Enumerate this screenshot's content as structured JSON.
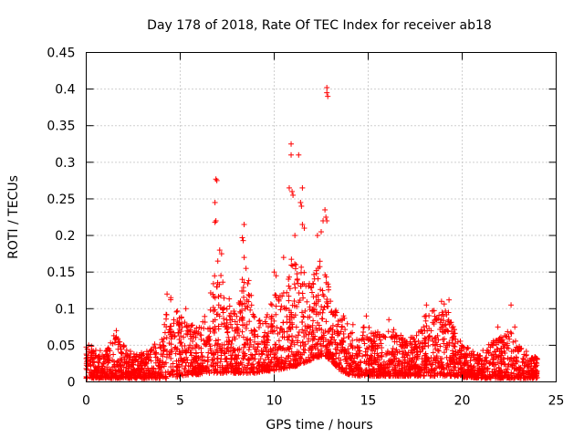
{
  "chart_data": {
    "type": "scatter",
    "title": "Day 178 of 2018, Rate Of TEC Index for receiver ab18",
    "xlabel": "GPS time / hours",
    "ylabel": "ROTI / TECUs",
    "xlim": [
      0,
      25
    ],
    "ylim": [
      0,
      0.45
    ],
    "xticks": [
      0,
      5,
      10,
      15,
      20,
      25
    ],
    "yticks": [
      0,
      0.05,
      0.1,
      0.15,
      0.2,
      0.25,
      0.3,
      0.35,
      0.4,
      0.45
    ],
    "xtick_labels": [
      "0",
      "5",
      "10",
      "15",
      "20",
      "25"
    ],
    "ytick_labels": [
      "0",
      "0.05",
      "0.1",
      "0.15",
      "0.2",
      "0.25",
      "0.3",
      "0.35",
      "0.4",
      "0.45"
    ],
    "grid": true,
    "marker": "+",
    "color": "#ff0000",
    "time_range_hours": [
      0,
      24
    ],
    "envelope": {
      "x": [
        0,
        0.5,
        1.0,
        1.5,
        2.0,
        2.5,
        3.0,
        3.5,
        4.0,
        4.5,
        5.0,
        5.5,
        6.0,
        6.5,
        7.0,
        7.5,
        8.0,
        8.5,
        9.0,
        9.5,
        10.0,
        10.5,
        11.0,
        11.5,
        12.0,
        12.5,
        13.0,
        13.5,
        14.0,
        14.5,
        15.0,
        15.5,
        16.0,
        16.5,
        17.0,
        17.5,
        18.0,
        18.5,
        19.0,
        19.5,
        20.0,
        20.5,
        21.0,
        21.5,
        22.0,
        22.5,
        23.0,
        23.5,
        24.0
      ],
      "upper": [
        0.055,
        0.045,
        0.045,
        0.065,
        0.05,
        0.04,
        0.04,
        0.045,
        0.07,
        0.115,
        0.09,
        0.08,
        0.075,
        0.11,
        0.17,
        0.12,
        0.09,
        0.17,
        0.08,
        0.09,
        0.12,
        0.13,
        0.18,
        0.16,
        0.14,
        0.17,
        0.12,
        0.1,
        0.085,
        0.07,
        0.08,
        0.07,
        0.075,
        0.07,
        0.065,
        0.06,
        0.09,
        0.1,
        0.11,
        0.085,
        0.05,
        0.045,
        0.04,
        0.055,
        0.06,
        0.075,
        0.05,
        0.04,
        0.035
      ],
      "lower": [
        0.005,
        0.005,
        0.005,
        0.005,
        0.005,
        0.005,
        0.005,
        0.005,
        0.005,
        0.005,
        0.008,
        0.01,
        0.01,
        0.012,
        0.012,
        0.012,
        0.012,
        0.012,
        0.012,
        0.015,
        0.015,
        0.018,
        0.02,
        0.025,
        0.03,
        0.035,
        0.03,
        0.015,
        0.01,
        0.008,
        0.008,
        0.008,
        0.008,
        0.008,
        0.008,
        0.008,
        0.008,
        0.008,
        0.008,
        0.008,
        0.006,
        0.006,
        0.005,
        0.005,
        0.005,
        0.005,
        0.005,
        0.005,
        0.005
      ]
    },
    "notable_points": [
      {
        "x": 12.8,
        "y": 0.402
      },
      {
        "x": 12.8,
        "y": 0.395
      },
      {
        "x": 12.85,
        "y": 0.39
      },
      {
        "x": 10.9,
        "y": 0.325
      },
      {
        "x": 10.9,
        "y": 0.31
      },
      {
        "x": 11.3,
        "y": 0.31
      },
      {
        "x": 6.9,
        "y": 0.277
      },
      {
        "x": 6.95,
        "y": 0.275
      },
      {
        "x": 6.85,
        "y": 0.245
      },
      {
        "x": 6.9,
        "y": 0.22
      },
      {
        "x": 6.85,
        "y": 0.218
      },
      {
        "x": 10.8,
        "y": 0.265
      },
      {
        "x": 10.95,
        "y": 0.26
      },
      {
        "x": 11.5,
        "y": 0.265
      },
      {
        "x": 11.4,
        "y": 0.245
      },
      {
        "x": 11.45,
        "y": 0.24
      },
      {
        "x": 11.0,
        "y": 0.255
      },
      {
        "x": 12.7,
        "y": 0.235
      },
      {
        "x": 12.75,
        "y": 0.225
      },
      {
        "x": 12.6,
        "y": 0.22
      },
      {
        "x": 12.8,
        "y": 0.22
      },
      {
        "x": 12.5,
        "y": 0.205
      },
      {
        "x": 12.3,
        "y": 0.2
      },
      {
        "x": 8.4,
        "y": 0.215
      },
      {
        "x": 8.3,
        "y": 0.197
      },
      {
        "x": 8.35,
        "y": 0.193
      },
      {
        "x": 11.5,
        "y": 0.215
      },
      {
        "x": 11.6,
        "y": 0.21
      },
      {
        "x": 11.1,
        "y": 0.2
      },
      {
        "x": 10.5,
        "y": 0.17
      },
      {
        "x": 10.0,
        "y": 0.15
      },
      {
        "x": 10.1,
        "y": 0.145
      },
      {
        "x": 8.4,
        "y": 0.17
      },
      {
        "x": 8.5,
        "y": 0.155
      },
      {
        "x": 8.3,
        "y": 0.14
      },
      {
        "x": 7.1,
        "y": 0.18
      },
      {
        "x": 7.2,
        "y": 0.175
      },
      {
        "x": 7.0,
        "y": 0.165
      },
      {
        "x": 22.6,
        "y": 0.105
      },
      {
        "x": 4.5,
        "y": 0.115
      },
      {
        "x": 4.3,
        "y": 0.12
      },
      {
        "x": 18.9,
        "y": 0.11
      },
      {
        "x": 19.3,
        "y": 0.112
      },
      {
        "x": 18.1,
        "y": 0.105
      },
      {
        "x": 5.3,
        "y": 0.1
      },
      {
        "x": 14.9,
        "y": 0.09
      },
      {
        "x": 16.1,
        "y": 0.085
      },
      {
        "x": 21.9,
        "y": 0.075
      },
      {
        "x": 22.8,
        "y": 0.075
      },
      {
        "x": 1.6,
        "y": 0.07
      }
    ]
  }
}
